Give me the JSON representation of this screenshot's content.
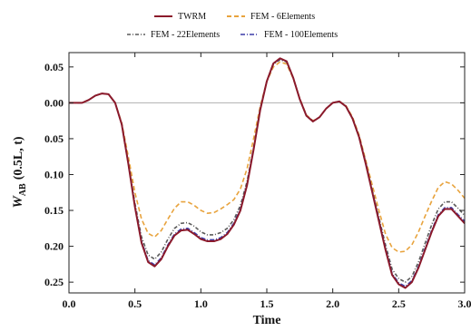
{
  "chart_data": {
    "type": "line",
    "xlabel": "Time",
    "ylabel_main": "W",
    "ylabel_sub": "AB",
    "ylabel_arg": "(0.5L, t)",
    "xlim": [
      0.0,
      3.0
    ],
    "ylim": [
      -0.265,
      0.07
    ],
    "xticks": [
      0.0,
      0.5,
      1.0,
      1.5,
      2.0,
      2.5,
      3.0
    ],
    "xtick_labels": [
      "0.0",
      "0.5",
      "1.0",
      "1.5",
      "2.0",
      "2.5",
      "3.0"
    ],
    "yticks": [
      0.05,
      0.0,
      -0.05,
      -0.1,
      -0.15,
      -0.2,
      -0.25
    ],
    "ytick_labels": [
      "0.05",
      "0.00",
      "0.05",
      "0.10",
      "0.15",
      "0.20",
      "0.25"
    ],
    "grid": false,
    "zero_line": true,
    "legend_position": "top-center",
    "x": [
      0.0,
      0.05,
      0.1,
      0.15,
      0.2,
      0.25,
      0.3,
      0.35,
      0.4,
      0.45,
      0.5,
      0.55,
      0.6,
      0.65,
      0.7,
      0.75,
      0.8,
      0.85,
      0.9,
      0.95,
      1.0,
      1.05,
      1.1,
      1.15,
      1.2,
      1.25,
      1.3,
      1.35,
      1.4,
      1.45,
      1.5,
      1.55,
      1.6,
      1.65,
      1.7,
      1.75,
      1.8,
      1.85,
      1.9,
      1.95,
      2.0,
      2.05,
      2.1,
      2.15,
      2.2,
      2.25,
      2.3,
      2.35,
      2.4,
      2.45,
      2.5,
      2.55,
      2.6,
      2.65,
      2.7,
      2.75,
      2.8,
      2.85,
      2.9,
      2.95,
      3.0
    ],
    "series": [
      {
        "name": "TWRM",
        "color": "#8b1a2b",
        "dash": "solid",
        "values": [
          0.0,
          0.0,
          0.0,
          0.004,
          0.01,
          0.013,
          0.012,
          0.0,
          -0.03,
          -0.085,
          -0.145,
          -0.195,
          -0.222,
          -0.228,
          -0.218,
          -0.2,
          -0.185,
          -0.178,
          -0.177,
          -0.183,
          -0.19,
          -0.193,
          -0.193,
          -0.19,
          -0.183,
          -0.17,
          -0.15,
          -0.115,
          -0.065,
          -0.01,
          0.03,
          0.055,
          0.062,
          0.058,
          0.035,
          0.005,
          -0.018,
          -0.026,
          -0.02,
          -0.008,
          0.0,
          0.002,
          -0.005,
          -0.022,
          -0.048,
          -0.085,
          -0.125,
          -0.165,
          -0.205,
          -0.24,
          -0.253,
          -0.258,
          -0.25,
          -0.23,
          -0.205,
          -0.18,
          -0.158,
          -0.148,
          -0.148,
          -0.158,
          -0.168
        ]
      },
      {
        "name": "FEM - 6Elements",
        "color": "#e8a33d",
        "dash": "5,3",
        "values": [
          0.0,
          0.0,
          0.0,
          0.004,
          0.01,
          0.013,
          0.012,
          0.0,
          -0.028,
          -0.075,
          -0.125,
          -0.162,
          -0.182,
          -0.187,
          -0.178,
          -0.162,
          -0.147,
          -0.138,
          -0.138,
          -0.143,
          -0.15,
          -0.154,
          -0.153,
          -0.148,
          -0.142,
          -0.135,
          -0.12,
          -0.092,
          -0.05,
          -0.005,
          0.03,
          0.05,
          0.057,
          0.054,
          0.034,
          0.006,
          -0.017,
          -0.025,
          -0.02,
          -0.008,
          0.0,
          0.002,
          -0.004,
          -0.02,
          -0.045,
          -0.08,
          -0.115,
          -0.15,
          -0.183,
          -0.202,
          -0.208,
          -0.207,
          -0.198,
          -0.18,
          -0.158,
          -0.137,
          -0.118,
          -0.11,
          -0.113,
          -0.122,
          -0.133
        ]
      },
      {
        "name": "FEM - 22Elements",
        "color": "#5a5a5a",
        "dash": "4,2,1,2",
        "values": [
          0.0,
          0.0,
          0.0,
          0.004,
          0.01,
          0.013,
          0.012,
          0.0,
          -0.03,
          -0.083,
          -0.14,
          -0.187,
          -0.212,
          -0.218,
          -0.208,
          -0.19,
          -0.175,
          -0.168,
          -0.167,
          -0.172,
          -0.18,
          -0.184,
          -0.184,
          -0.181,
          -0.175,
          -0.163,
          -0.143,
          -0.11,
          -0.062,
          -0.008,
          0.03,
          0.054,
          0.06,
          0.057,
          0.035,
          0.005,
          -0.018,
          -0.026,
          -0.02,
          -0.008,
          0.0,
          0.002,
          -0.005,
          -0.022,
          -0.047,
          -0.083,
          -0.122,
          -0.16,
          -0.198,
          -0.232,
          -0.245,
          -0.25,
          -0.242,
          -0.222,
          -0.196,
          -0.17,
          -0.148,
          -0.138,
          -0.138,
          -0.147,
          -0.157
        ]
      },
      {
        "name": "FEM - 100Elements",
        "color": "#3c3ca8",
        "dash": "5,2,1,2",
        "values": [
          0.0,
          0.0,
          0.0,
          0.004,
          0.01,
          0.013,
          0.012,
          0.0,
          -0.03,
          -0.085,
          -0.144,
          -0.193,
          -0.22,
          -0.226,
          -0.216,
          -0.198,
          -0.183,
          -0.176,
          -0.175,
          -0.181,
          -0.188,
          -0.191,
          -0.191,
          -0.188,
          -0.181,
          -0.168,
          -0.148,
          -0.114,
          -0.064,
          -0.009,
          0.03,
          0.055,
          0.061,
          0.058,
          0.035,
          0.005,
          -0.018,
          -0.026,
          -0.02,
          -0.008,
          0.0,
          0.002,
          -0.005,
          -0.022,
          -0.048,
          -0.084,
          -0.124,
          -0.163,
          -0.203,
          -0.238,
          -0.251,
          -0.256,
          -0.248,
          -0.228,
          -0.203,
          -0.178,
          -0.156,
          -0.146,
          -0.146,
          -0.156,
          -0.165
        ]
      }
    ]
  }
}
